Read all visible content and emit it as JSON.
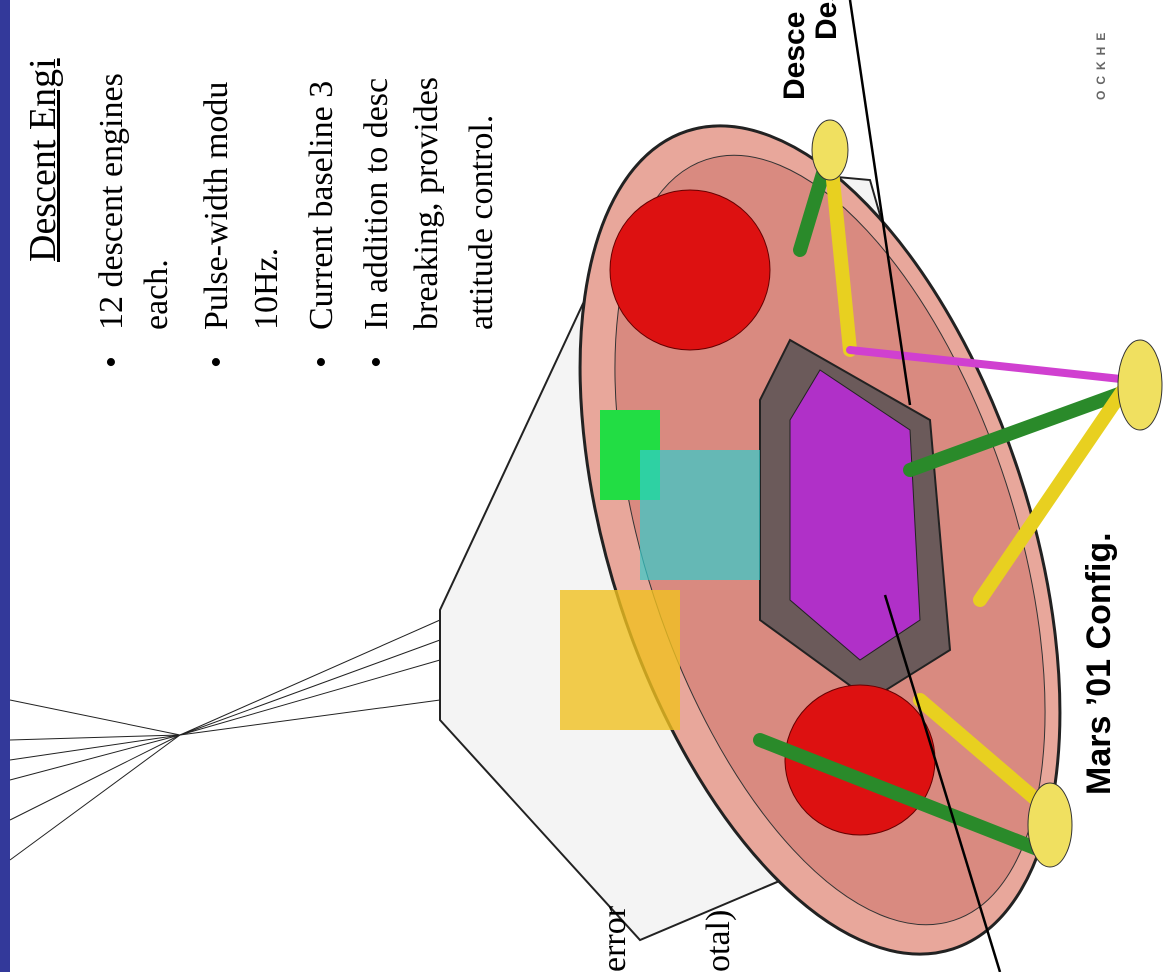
{
  "slide": {
    "heading": "Descent Engi",
    "bullets": [
      {
        "lines": [
          "12 descent engines",
          "each."
        ]
      },
      {
        "lines": [
          "Pulse-width modu",
          "10Hz."
        ]
      },
      {
        "lines": [
          "Current baseline 3"
        ]
      },
      {
        "lines": [
          "In addition to desc",
          "breaking, provides",
          "attitude control."
        ]
      }
    ],
    "left_fragments": [
      "error",
      "otal)"
    ],
    "callouts": [
      "Desce",
      "Desce"
    ],
    "caption": "Mars ’01 Config.",
    "logo": "OCKHE"
  }
}
